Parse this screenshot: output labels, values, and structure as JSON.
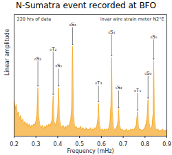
{
  "chart_data": {
    "type": "area",
    "title": "N-Sumatra event recorded at BFO",
    "x_label": "Frequency (mHz)",
    "y_label": "Linear amplitude",
    "color": "#f5a623",
    "xlim": [
      0.2,
      0.9
    ],
    "ylim": [
      0,
      100
    ],
    "xticks": [
      0.2,
      0.3,
      0.4,
      0.5,
      0.6,
      0.7,
      0.8,
      0.9
    ],
    "yticks": [],
    "tick_labels": "x",
    "inset_texts": [
      "220 hrs of data",
      "invar wire strain meter N2°E"
    ],
    "annotations": [
      {
        "text": "₀S₂",
        "x": 0.309,
        "y": 62
      },
      {
        "text": "₀T₂",
        "x": 0.379,
        "y": 70
      },
      {
        "text": "₂S₁",
        "x": 0.404,
        "y": 56
      },
      {
        "text": "₀S₃",
        "x": 0.468,
        "y": 90
      },
      {
        "text": "₀T₃",
        "x": 0.587,
        "y": 42
      },
      {
        "text": "₀S₄",
        "x": 0.647,
        "y": 84
      },
      {
        "text": "₁S₂",
        "x": 0.679,
        "y": 38
      },
      {
        "text": "₀T₄",
        "x": 0.766,
        "y": 36
      },
      {
        "text": "₀S₀",
        "x": 0.814,
        "y": 50
      },
      {
        "text": "₀S₅",
        "x": 0.84,
        "y": 80
      }
    ],
    "x": [
      0.2,
      0.205,
      0.21,
      0.215,
      0.22,
      0.225,
      0.23,
      0.235,
      0.24,
      0.245,
      0.25,
      0.255,
      0.26,
      0.265,
      0.27,
      0.275,
      0.28,
      0.285,
      0.29,
      0.295,
      0.3,
      0.305,
      0.309,
      0.313,
      0.318,
      0.325,
      0.33,
      0.335,
      0.34,
      0.345,
      0.35,
      0.355,
      0.36,
      0.365,
      0.37,
      0.375,
      0.379,
      0.383,
      0.39,
      0.395,
      0.4,
      0.404,
      0.408,
      0.415,
      0.42,
      0.425,
      0.43,
      0.435,
      0.44,
      0.445,
      0.45,
      0.455,
      0.46,
      0.464,
      0.468,
      0.472,
      0.476,
      0.48,
      0.485,
      0.49,
      0.495,
      0.5,
      0.505,
      0.51,
      0.515,
      0.52,
      0.525,
      0.53,
      0.535,
      0.54,
      0.545,
      0.55,
      0.555,
      0.56,
      0.565,
      0.57,
      0.575,
      0.58,
      0.584,
      0.587,
      0.59,
      0.595,
      0.6,
      0.605,
      0.61,
      0.615,
      0.62,
      0.625,
      0.63,
      0.635,
      0.64,
      0.644,
      0.647,
      0.65,
      0.655,
      0.66,
      0.665,
      0.67,
      0.675,
      0.679,
      0.683,
      0.69,
      0.695,
      0.7,
      0.705,
      0.71,
      0.715,
      0.72,
      0.725,
      0.73,
      0.735,
      0.74,
      0.745,
      0.75,
      0.755,
      0.76,
      0.766,
      0.77,
      0.775,
      0.78,
      0.785,
      0.79,
      0.795,
      0.8,
      0.805,
      0.81,
      0.814,
      0.818,
      0.823,
      0.828,
      0.833,
      0.837,
      0.84,
      0.843,
      0.848,
      0.853,
      0.86,
      0.865,
      0.87,
      0.875,
      0.88,
      0.885,
      0.89,
      0.895,
      0.9
    ],
    "values": [
      30,
      22,
      26,
      18,
      20,
      14,
      17,
      12,
      14,
      10,
      12,
      9,
      11,
      8,
      10,
      7,
      9,
      8,
      10,
      9,
      12,
      18,
      40,
      16,
      9,
      7,
      9,
      6,
      8,
      7,
      9,
      8,
      10,
      8,
      11,
      14,
      33,
      12,
      9,
      12,
      18,
      40,
      14,
      8,
      7,
      9,
      6,
      8,
      7,
      9,
      8,
      10,
      14,
      22,
      74,
      20,
      10,
      7,
      8,
      6,
      7,
      6,
      8,
      5,
      7,
      6,
      5,
      7,
      5,
      6,
      5,
      7,
      5,
      6,
      5,
      7,
      6,
      9,
      14,
      27,
      12,
      6,
      5,
      6,
      4,
      6,
      5,
      6,
      5,
      7,
      12,
      25,
      65,
      20,
      8,
      5,
      6,
      7,
      10,
      22,
      9,
      5,
      6,
      4,
      5,
      4,
      6,
      4,
      5,
      4,
      6,
      5,
      6,
      5,
      7,
      9,
      20,
      8,
      5,
      6,
      4,
      5,
      6,
      7,
      10,
      16,
      30,
      12,
      7,
      6,
      9,
      18,
      62,
      16,
      7,
      5,
      6,
      4,
      5,
      4,
      6,
      5,
      4,
      5,
      4
    ]
  }
}
